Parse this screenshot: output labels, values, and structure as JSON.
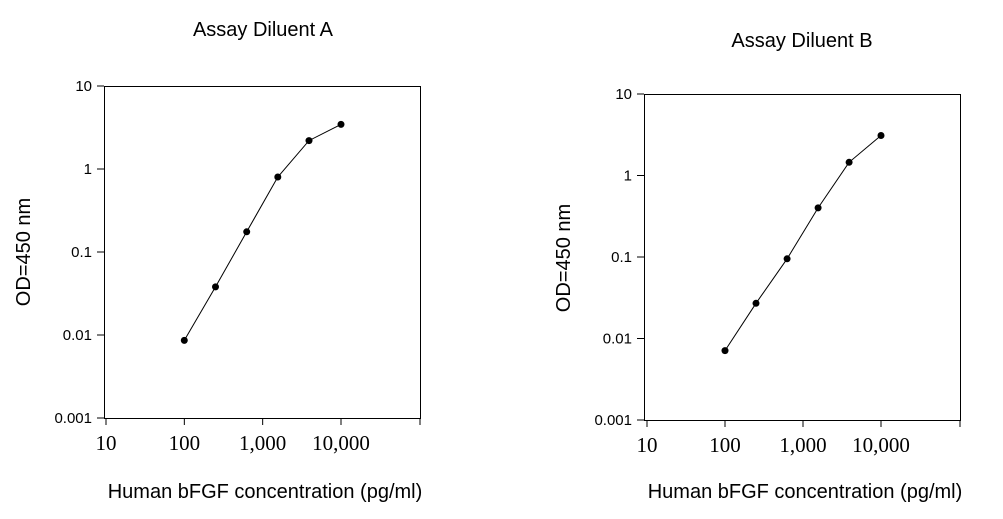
{
  "chart_data": [
    {
      "type": "line",
      "title": "Assay Diluent A",
      "xlabel": "Human bFGF concentration (pg/ml)",
      "ylabel": "OD=450 nm",
      "x_scale": "log",
      "y_scale": "log",
      "xlim": [
        10,
        10000
      ],
      "ylim": [
        0.001,
        10
      ],
      "x_ticks": [
        10,
        100,
        1000,
        10000
      ],
      "x_tick_labels": [
        "10",
        "100",
        "1,000",
        "10,000"
      ],
      "y_ticks": [
        0.001,
        0.01,
        0.1,
        1,
        10
      ],
      "y_tick_labels": [
        "0.001",
        "0.01",
        "0.1",
        "1",
        "10"
      ],
      "grid": false,
      "series": [
        {
          "x": [
            100,
            250,
            625,
            1560,
            3900,
            10000
          ],
          "y": [
            0.0086,
            0.038,
            0.175,
            0.8,
            2.2,
            3.45
          ]
        }
      ]
    },
    {
      "type": "line",
      "title": "Assay Diluent B",
      "xlabel": "Human bFGF concentration (pg/ml)",
      "ylabel": "OD=450 nm",
      "x_scale": "log",
      "y_scale": "log",
      "xlim": [
        10,
        10000
      ],
      "ylim": [
        0.001,
        10
      ],
      "x_ticks": [
        10,
        100,
        1000,
        10000
      ],
      "x_tick_labels": [
        "10",
        "100",
        "1,000",
        "10,000"
      ],
      "y_ticks": [
        0.001,
        0.01,
        0.1,
        1,
        10
      ],
      "y_tick_labels": [
        "0.001",
        "0.01",
        "0.1",
        "1",
        "10"
      ],
      "grid": false,
      "series": [
        {
          "x": [
            100,
            250,
            625,
            1560,
            3900,
            10000
          ],
          "y": [
            0.0071,
            0.027,
            0.095,
            0.4,
            1.45,
            3.1
          ]
        }
      ]
    }
  ]
}
